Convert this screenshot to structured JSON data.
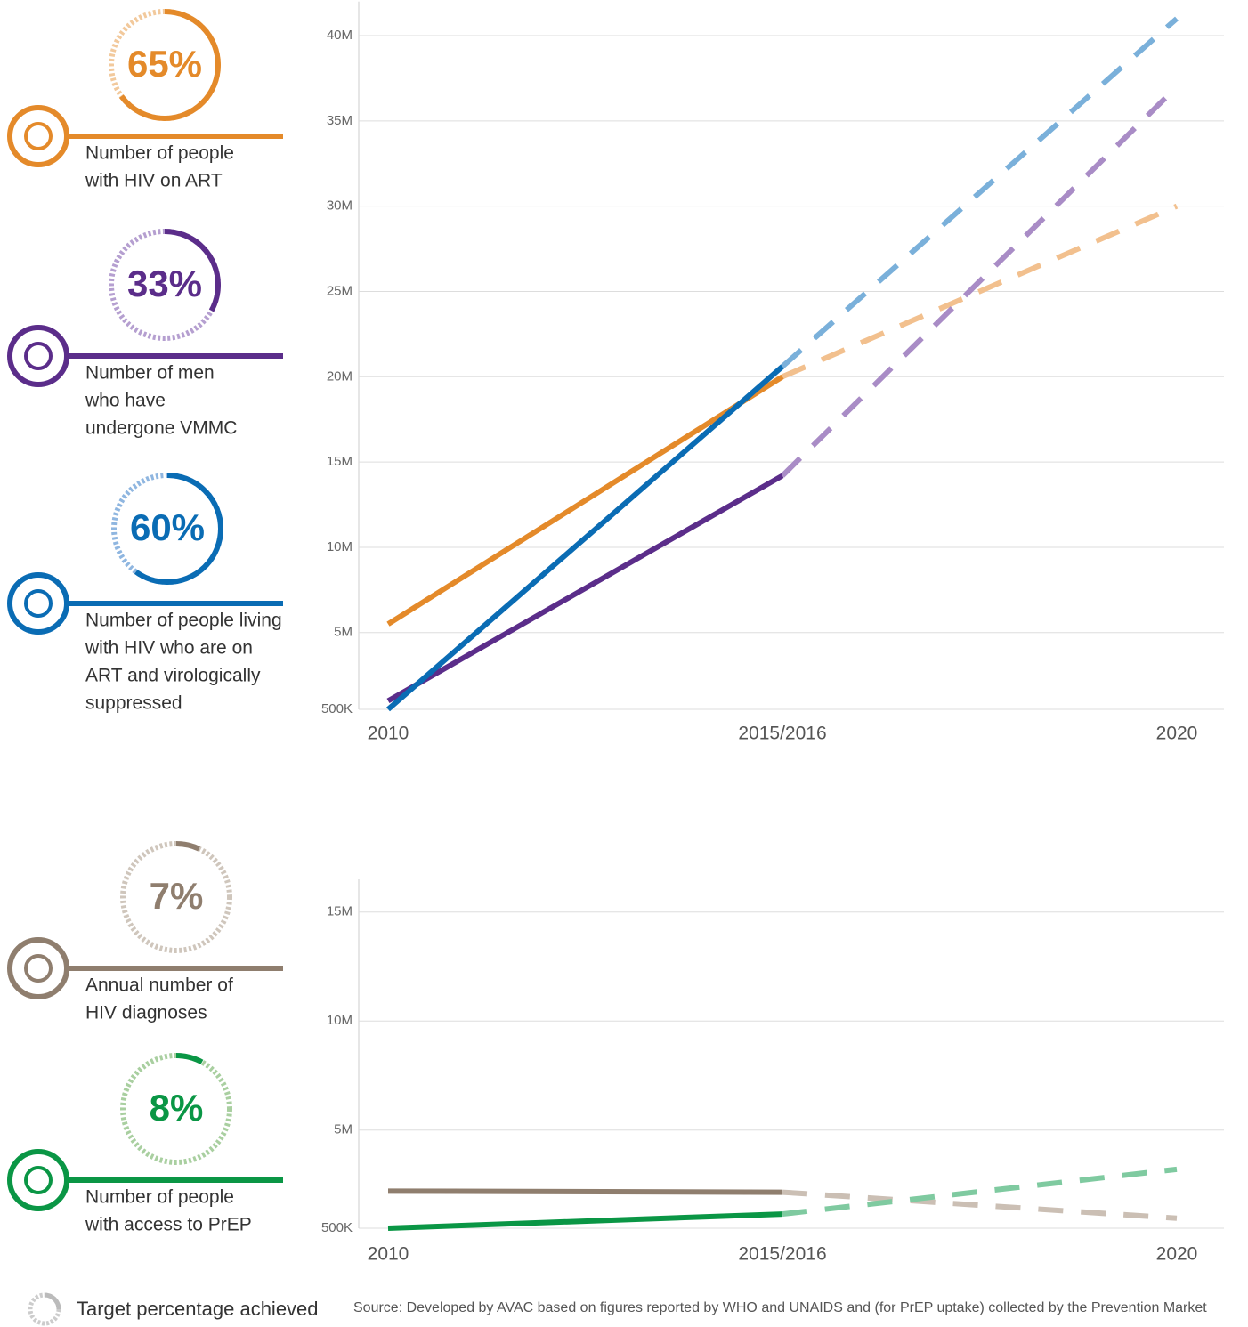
{
  "indicators": [
    {
      "value": 65,
      "value_label": "65%",
      "lines": [
        "Number of people",
        "with HIV on ART"
      ],
      "color": "#e48a2a",
      "light_color": "#f2c99c"
    },
    {
      "value": 33,
      "value_label": "33%",
      "lines": [
        "Number of men",
        "who have",
        "undergone VMMC"
      ],
      "color": "#5b2d8a",
      "light_color": "#b59fd0"
    },
    {
      "value": 60,
      "value_label": "60%",
      "lines": [
        "Number of people living",
        "with HIV who are on",
        "ART and virologically",
        "suppressed"
      ],
      "color": "#0a6cb4",
      "light_color": "#8fb6e0"
    },
    {
      "value": 7,
      "value_label": "7%",
      "lines": [
        "Annual number of",
        "HIV diagnoses"
      ],
      "color": "#8f7e6e",
      "light_color": "#cfc6bc"
    },
    {
      "value": 8,
      "value_label": "8%",
      "lines": [
        "Number of people",
        "with access to PrEP"
      ],
      "color": "#0a9645",
      "light_color": "#a9cfa0"
    }
  ],
  "chart_data": [
    {
      "type": "line",
      "categories": [
        "2010",
        "2015/2016",
        "2020"
      ],
      "ylim": [
        500000,
        42000000
      ],
      "yticks": [
        {
          "value": 500000,
          "label": "500K"
        },
        {
          "value": 5000000,
          "label": "5M"
        },
        {
          "value": 10000000,
          "label": "10M"
        },
        {
          "value": 15000000,
          "label": "15M"
        },
        {
          "value": 20000000,
          "label": "20M"
        },
        {
          "value": 25000000,
          "label": "25M"
        },
        {
          "value": 30000000,
          "label": "30M"
        },
        {
          "value": 35000000,
          "label": "35M"
        },
        {
          "value": 40000000,
          "label": "40M"
        }
      ],
      "grid": true,
      "series": [
        {
          "color": "#e48a2a",
          "projection_color": "#f2c08e",
          "values": [
            5500000,
            20000000,
            30000000
          ]
        },
        {
          "color": "#5b2d8a",
          "projection_color": "#a98cc6",
          "values": [
            1000000,
            14200000,
            37000000
          ]
        },
        {
          "color": "#0a6cb4",
          "projection_color": "#7ab0da",
          "values": [
            500000,
            20600000,
            41000000
          ]
        }
      ]
    },
    {
      "type": "line",
      "categories": [
        "2010",
        "2015/2016",
        "2020"
      ],
      "ylim": [
        500000,
        16500000
      ],
      "yticks": [
        {
          "value": 500000,
          "label": "500K"
        },
        {
          "value": 5000000,
          "label": "5M"
        },
        {
          "value": 10000000,
          "label": "10M"
        },
        {
          "value": 15000000,
          "label": "15M"
        }
      ],
      "grid": true,
      "series": [
        {
          "color": "#8f7e6e",
          "projection_color": "#cbbfb4",
          "values": [
            2200000,
            2150000,
            960000
          ]
        },
        {
          "color": "#0a9645",
          "projection_color": "#7fcaa0",
          "values": [
            500000,
            1150000,
            3200000
          ]
        }
      ]
    }
  ],
  "footer": {
    "legend": "Target percentage achieved",
    "source": "Source: Developed by AVAC based on figures reported by WHO and UNAIDS and (for PrEP uptake) collected by the Prevention Market"
  }
}
